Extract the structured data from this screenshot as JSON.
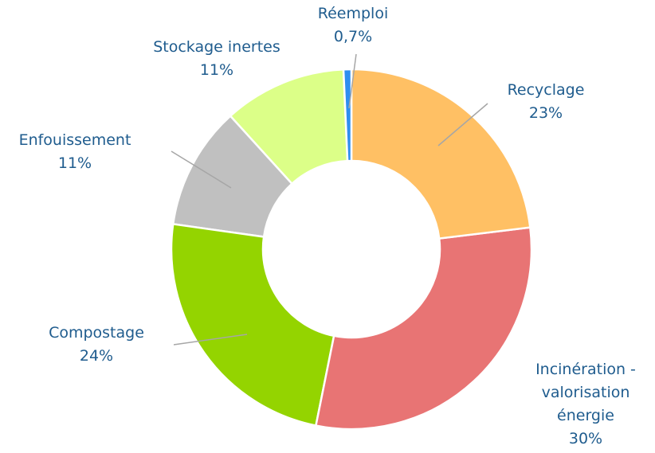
{
  "chart_data": {
    "type": "donut",
    "categories": [
      "Réemploi",
      "Recyclage",
      "Incinération - valorisation énergie",
      "Compostage",
      "Enfouissement",
      "Stockage inertes"
    ],
    "values": [
      0.7,
      23,
      30,
      24,
      11,
      11
    ],
    "value_labels": [
      "0,7%",
      "23%",
      "30%",
      "24%",
      "11%",
      "11%"
    ],
    "colors": [
      "#2e8ff0",
      "#ffc064",
      "#e87474",
      "#94d400",
      "#c0c0c0",
      "#dcff88"
    ]
  }
}
